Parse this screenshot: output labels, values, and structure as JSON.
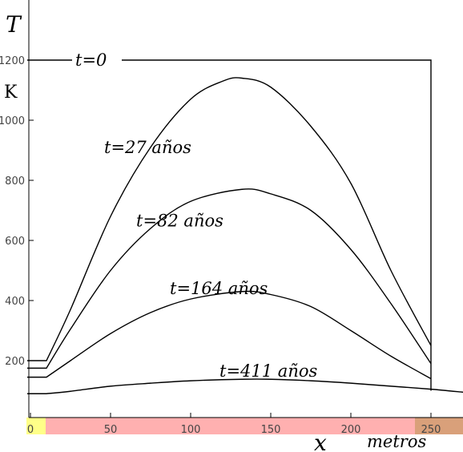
{
  "chart_data": {
    "type": "line",
    "title": "",
    "ylabel": "T",
    "yunit": "K",
    "xlabel": "x",
    "xunit": "metros",
    "xlim": [
      -2,
      270
    ],
    "ylim": [
      0,
      1300
    ],
    "xticks": [
      0,
      50,
      100,
      150,
      200,
      250
    ],
    "yticks": [
      200,
      400,
      600,
      800,
      1000,
      1200
    ],
    "xtick_labels": [
      "0",
      "50",
      "100",
      "150",
      "200",
      "250"
    ],
    "ytick_labels": [
      "200",
      "400",
      "600",
      "800",
      "1000",
      "1200"
    ],
    "grid": false,
    "axis_bar_colors": {
      "left": "#ffff88",
      "middle": "#ffb0b0",
      "right": "#d9a07a"
    },
    "series": [
      {
        "name": "t=0",
        "x": [
          -2,
          250,
          250
        ],
        "y": [
          1200,
          1200,
          100
        ]
      },
      {
        "name": "t=27 años",
        "x": [
          -2,
          10,
          25,
          50,
          75,
          100,
          120,
          132,
          150,
          175,
          200,
          225,
          250
        ],
        "y": [
          200,
          200,
          370,
          680,
          910,
          1070,
          1130,
          1140,
          1110,
          980,
          790,
          500,
          250
        ]
      },
      {
        "name": "t=82 años",
        "x": [
          -2,
          10,
          25,
          50,
          75,
          100,
          132,
          150,
          175,
          200,
          225,
          250
        ],
        "y": [
          175,
          175,
          305,
          500,
          640,
          730,
          770,
          755,
          700,
          570,
          390,
          190
        ]
      },
      {
        "name": "t=164 años",
        "x": [
          -2,
          10,
          25,
          50,
          75,
          100,
          132,
          150,
          175,
          200,
          225,
          250
        ],
        "y": [
          145,
          145,
          200,
          290,
          360,
          405,
          430,
          420,
          380,
          300,
          215,
          140
        ]
      },
      {
        "name": "t=411 años",
        "x": [
          -2,
          10,
          25,
          50,
          75,
          100,
          132,
          150,
          175,
          200,
          225,
          250,
          270
        ],
        "y": [
          90,
          90,
          98,
          115,
          125,
          133,
          138,
          138,
          133,
          125,
          115,
          105,
          95
        ]
      }
    ],
    "curve_labels": [
      {
        "text": "t=0",
        "x": 28,
        "y": 1200
      },
      {
        "text": "t=27 años",
        "x": 46,
        "y": 910
      },
      {
        "text": "t=82 años",
        "x": 66,
        "y": 665
      },
      {
        "text": "t=164 años",
        "x": 87,
        "y": 440
      },
      {
        "text": "t=411 años",
        "x": 118,
        "y": 165
      }
    ]
  }
}
